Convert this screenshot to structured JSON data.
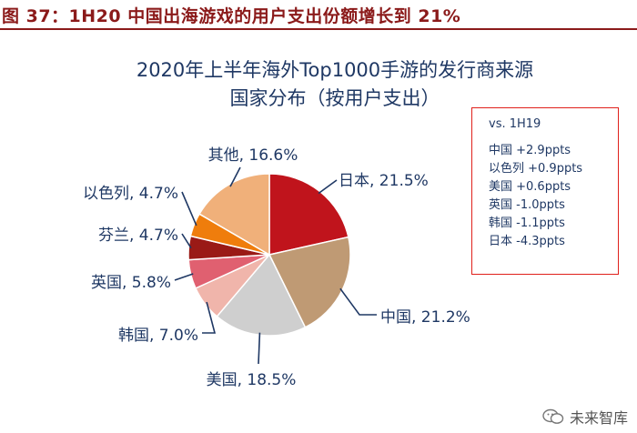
{
  "figure_title": "图 37：1H20 中国出海游戏的用户支出份额增长到 21%",
  "chart_data": {
    "type": "pie",
    "title_lines": [
      "2020年上半年海外Top1000手游的发行商来源",
      "国家分布（按用户支出）"
    ],
    "slices": [
      {
        "label": "日本, 21.5%",
        "value": 21.5,
        "color": "#c0141c"
      },
      {
        "label": "中国, 21.2%",
        "value": 21.2,
        "color": "#bf9a74"
      },
      {
        "label": "美国, 18.5%",
        "value": 18.5,
        "color": "#cfcfcf"
      },
      {
        "label": "韩国, 7.0%",
        "value": 7.0,
        "color": "#f0b5ab"
      },
      {
        "label": "英国, 5.8%",
        "value": 5.8,
        "color": "#e06070"
      },
      {
        "label": "芬兰, 4.7%",
        "value": 4.7,
        "color": "#9a1a16"
      },
      {
        "label": "以色列, 4.7%",
        "value": 4.7,
        "color": "#ef7d0c"
      },
      {
        "label": "其他, 16.6%",
        "value": 16.6,
        "color": "#f0b07a"
      }
    ],
    "start_angle_deg": 0,
    "direction": "clockwise"
  },
  "legend": {
    "heading": "vs. 1H19",
    "items": [
      "中国 +2.9ppts",
      "以色列 +0.9ppts",
      "美国 +0.6ppts",
      "英国 -1.0ppts",
      "韩国 -1.1ppts",
      "日本 -4.3ppts"
    ]
  },
  "watermark": {
    "text": "未来智库",
    "icon": "wechat-icon"
  }
}
